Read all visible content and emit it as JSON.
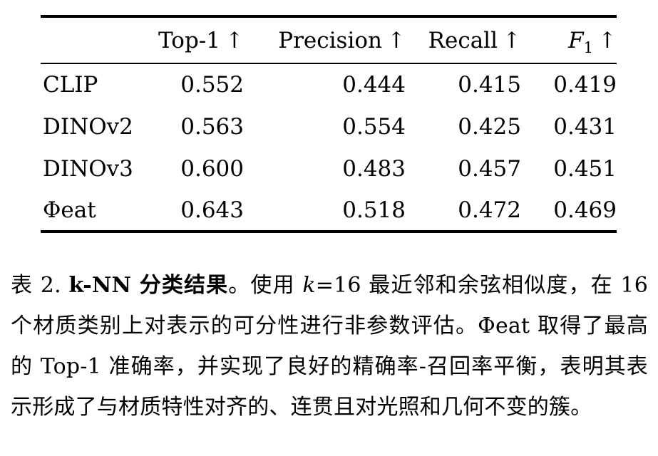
{
  "table": {
    "headers": [
      {
        "label": "Top-1",
        "arrow": "↑"
      },
      {
        "label": "Precision",
        "arrow": "↑"
      },
      {
        "label": "Recall",
        "arrow": "↑"
      },
      {
        "label": "F",
        "sub": "1",
        "arrow": "↑"
      }
    ],
    "rows": [
      {
        "model": "CLIP",
        "bold_model": false,
        "values": [
          {
            "value": "0.552",
            "bold": false
          },
          {
            "value": "0.444",
            "bold": false
          },
          {
            "value": "0.415",
            "bold": false
          },
          {
            "value": "0.419",
            "bold": false
          }
        ]
      },
      {
        "model": "DINOv2",
        "bold_model": false,
        "values": [
          {
            "value": "0.563",
            "bold": false
          },
          {
            "value": "0.554",
            "bold": true
          },
          {
            "value": "0.425",
            "bold": false
          },
          {
            "value": "0.431",
            "bold": false
          }
        ]
      },
      {
        "model": "DINOv3",
        "bold_model": false,
        "values": [
          {
            "value": "0.600",
            "bold": false
          },
          {
            "value": "0.483",
            "bold": false
          },
          {
            "value": "0.457",
            "bold": false
          },
          {
            "value": "0.451",
            "bold": false
          }
        ]
      },
      {
        "model": "Φeat",
        "bold_model": true,
        "values": [
          {
            "value": "0.643",
            "bold": true
          },
          {
            "value": "0.518",
            "bold": false
          },
          {
            "value": "0.472",
            "bold": true
          },
          {
            "value": "0.469",
            "bold": true
          }
        ]
      }
    ]
  },
  "caption": {
    "segments": [
      {
        "text": "表 2. ",
        "style": "normal"
      },
      {
        "text": "k-NN 分类结果",
        "style": "bold"
      },
      {
        "text": "。使用 ",
        "style": "normal"
      },
      {
        "text": "k",
        "style": "italic"
      },
      {
        "text": "=16 最近邻和余弦相似度，在 16 个材质类别上对表示的可分性进行非参数评估。Φeat 取得了最高的 Top-1 准确率，并实现了良好的精确率-召回率平衡，表明其表示形成了与材质特性对齐的、连贯且对光照和几何不变的簇。",
        "style": "normal"
      }
    ]
  },
  "colors": {
    "text": "#000000",
    "background": "#ffffff",
    "rule": "#000000"
  }
}
